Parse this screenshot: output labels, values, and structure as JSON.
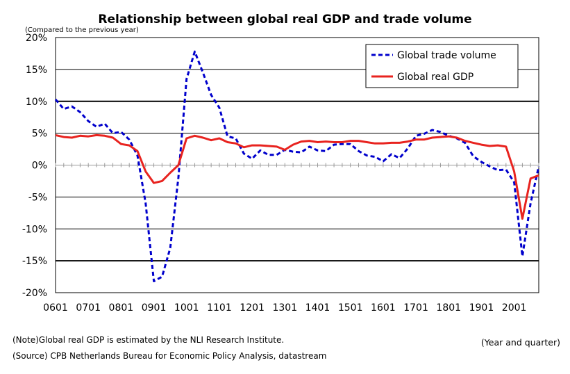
{
  "chart_data": {
    "type": "line",
    "title": "Relationship between global real GDP and trade volume",
    "ylabel": "(Compared to the previous year)",
    "xlabel": "(Year and quarter)",
    "ylim": [
      -20,
      20
    ],
    "yticks": [
      "20%",
      "15%",
      "10%",
      "5%",
      "0%",
      "-5%",
      "-10%",
      "-15%",
      "-20%"
    ],
    "ytick_values": [
      20,
      15,
      10,
      5,
      0,
      -5,
      -10,
      -15,
      -20
    ],
    "xticks": [
      "0601",
      "0701",
      "0801",
      "0901",
      "1001",
      "1101",
      "1201",
      "1301",
      "1401",
      "1501",
      "1601",
      "1701",
      "1801",
      "1901",
      "2001"
    ],
    "legend_position": "top-right",
    "series": [
      {
        "name": "Global trade volume",
        "color": "#0000cc",
        "style": "dashed",
        "values": [
          10.3,
          8.8,
          9.2,
          8.3,
          6.9,
          6.0,
          6.5,
          5.0,
          5.2,
          4.0,
          1.5,
          -6.0,
          -18.2,
          -17.5,
          -13.0,
          -2.0,
          13.5,
          17.8,
          14.5,
          11.0,
          9.0,
          4.5,
          4.2,
          1.8,
          1.0,
          2.3,
          1.6,
          1.6,
          2.4,
          2.1,
          2.0,
          2.9,
          2.3,
          2.2,
          3.2,
          3.3,
          3.3,
          2.2,
          1.5,
          1.3,
          0.6,
          1.7,
          1.1,
          2.6,
          4.6,
          4.9,
          5.5,
          5.2,
          4.6,
          4.2,
          3.5,
          1.4,
          0.5,
          -0.2,
          -0.8,
          -0.7,
          -2.7,
          -14.3,
          -6.0,
          -0.2
        ]
      },
      {
        "name": "Global real GDP",
        "color": "#e8231f",
        "style": "solid",
        "values": [
          4.7,
          4.4,
          4.3,
          4.6,
          4.5,
          4.7,
          4.6,
          4.3,
          3.3,
          3.1,
          2.2,
          -1.0,
          -2.8,
          -2.5,
          -1.2,
          0.0,
          4.2,
          4.6,
          4.3,
          3.9,
          4.2,
          3.6,
          3.4,
          2.8,
          3.1,
          3.1,
          3.0,
          2.9,
          2.4,
          3.2,
          3.7,
          3.8,
          3.6,
          3.7,
          3.6,
          3.6,
          3.8,
          3.8,
          3.6,
          3.4,
          3.4,
          3.5,
          3.5,
          3.7,
          4.0,
          4.0,
          4.3,
          4.4,
          4.5,
          4.3,
          3.8,
          3.5,
          3.2,
          3.0,
          3.1,
          2.9,
          -1.0,
          -8.4,
          -2.1,
          -1.6
        ]
      }
    ]
  },
  "notes": {
    "note1": "(Note)Global real GDP is estimated by the NLI Research Institute.",
    "note2": "(Source) CPB Netherlands Bureau for Economic Policy Analysis, datastream"
  }
}
